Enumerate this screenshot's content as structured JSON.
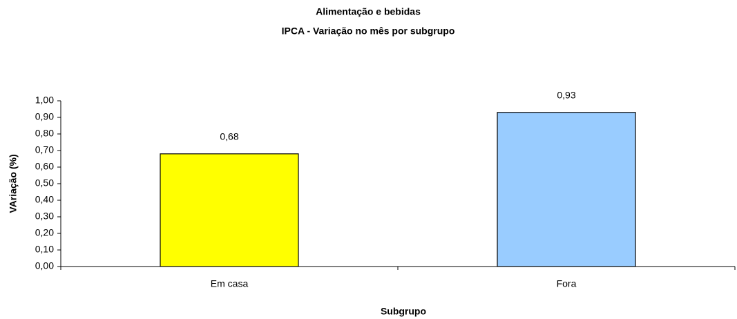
{
  "chart_data": {
    "type": "bar",
    "title": "Alimentação e bebidas",
    "subtitle": "IPCA - Variação no mês por subgrupo",
    "x_label": "Subgrupo",
    "y_label": "VAriação (%)",
    "categories": [
      "Em casa",
      "Fora"
    ],
    "values": [
      0.68,
      0.93
    ],
    "value_labels": [
      "0,68",
      "0,93"
    ],
    "colors": [
      "#ffff00",
      "#99ccff"
    ],
    "ylim": [
      0,
      1
    ],
    "yticks": [
      {
        "value": 0,
        "label": "0,00"
      },
      {
        "value": 0.1,
        "label": "0,10"
      },
      {
        "value": 0.2,
        "label": "0,20"
      },
      {
        "value": 0.3,
        "label": "0,30"
      },
      {
        "value": 0.4,
        "label": "0,40"
      },
      {
        "value": 0.5,
        "label": "0,50"
      },
      {
        "value": 0.6,
        "label": "0,60"
      },
      {
        "value": 0.7,
        "label": "0,70"
      },
      {
        "value": 0.8,
        "label": "0,80"
      },
      {
        "value": 0.9,
        "label": "0,90"
      },
      {
        "value": 1,
        "label": "1,00"
      }
    ],
    "grid": false
  }
}
